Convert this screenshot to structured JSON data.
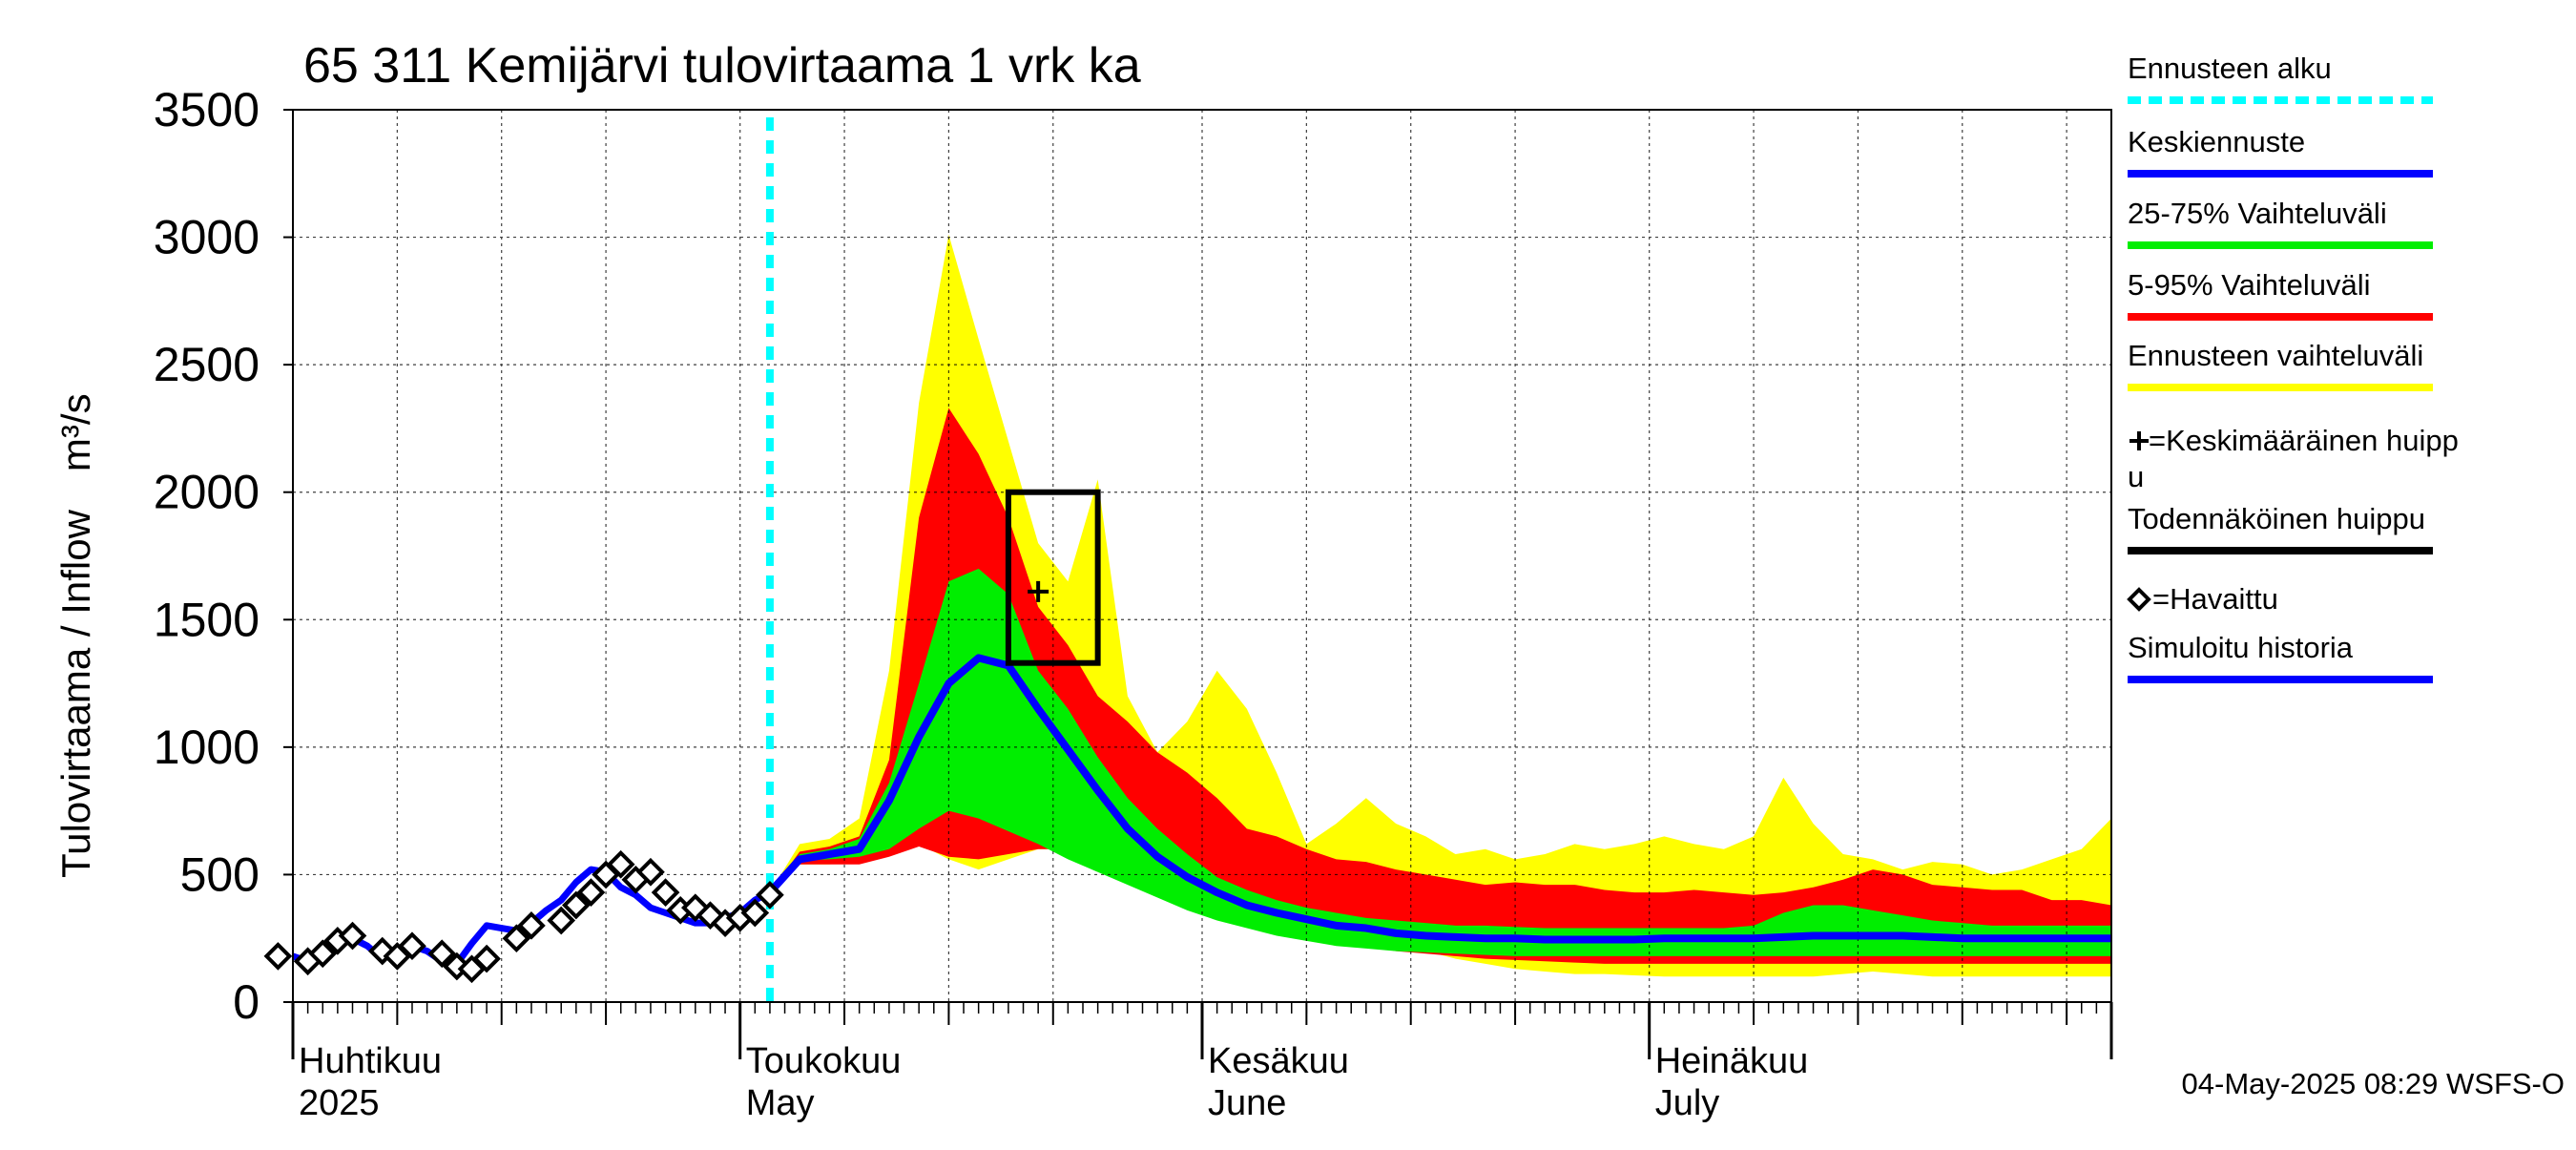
{
  "chart_data": {
    "type": "area",
    "title": "65 311 Kemijärvi tulovirtaama 1 vrk ka",
    "ylabel_fi": "Tulovirtaama / Inflow",
    "ylabel_unit": "m³/s",
    "ylim": [
      0,
      3500
    ],
    "yticks": [
      "0",
      "500",
      "1000",
      "1500",
      "2000",
      "2500",
      "3000",
      "3500"
    ],
    "xlim": [
      "2025-04-01",
      "2025-08-01"
    ],
    "grid": true,
    "x_month_labels": [
      {
        "date": "2025-04-01",
        "line1": "Huhtikuu",
        "line2": "2025"
      },
      {
        "date": "2025-05-01",
        "line1": "Toukokuu",
        "line2": "May"
      },
      {
        "date": "2025-06-01",
        "line1": "Kesäkuu",
        "line2": "June"
      },
      {
        "date": "2025-07-01",
        "line1": "Heinäkuu",
        "line2": "July"
      }
    ],
    "forecast_start": "2025-05-03",
    "band_dates": [
      "2025-05-03",
      "2025-05-05",
      "2025-05-07",
      "2025-05-09",
      "2025-05-11",
      "2025-05-13",
      "2025-05-15",
      "2025-05-17",
      "2025-05-19",
      "2025-05-21",
      "2025-05-23",
      "2025-05-25",
      "2025-05-27",
      "2025-05-29",
      "2025-05-31",
      "2025-06-02",
      "2025-06-04",
      "2025-06-06",
      "2025-06-08",
      "2025-06-10",
      "2025-06-12",
      "2025-06-14",
      "2025-06-16",
      "2025-06-18",
      "2025-06-20",
      "2025-06-22",
      "2025-06-24",
      "2025-06-26",
      "2025-06-28",
      "2025-06-30",
      "2025-07-02",
      "2025-07-04",
      "2025-07-06",
      "2025-07-08",
      "2025-07-10",
      "2025-07-12",
      "2025-07-14",
      "2025-07-16",
      "2025-07-18",
      "2025-07-20",
      "2025-07-22",
      "2025-07-24",
      "2025-07-26",
      "2025-07-28",
      "2025-07-30",
      "2025-08-01"
    ],
    "series": [
      {
        "name": "Ennusteen vaihteluväli",
        "color": "#ffff00",
        "low": [
          430,
          540,
          540,
          560,
          580,
          620,
          560,
          520,
          560,
          600,
          600,
          580,
          540,
          500,
          460,
          400,
          350,
          310,
          280,
          250,
          230,
          210,
          200,
          170,
          150,
          130,
          120,
          110,
          110,
          105,
          100,
          100,
          100,
          100,
          100,
          100,
          110,
          120,
          110,
          100,
          100,
          100,
          100,
          100,
          100,
          100
        ],
        "high": [
          430,
          620,
          640,
          720,
          1300,
          2350,
          3010,
          2600,
          2200,
          1800,
          1650,
          2050,
          1200,
          980,
          1100,
          1300,
          1150,
          900,
          620,
          700,
          800,
          700,
          650,
          580,
          600,
          560,
          580,
          620,
          600,
          620,
          650,
          620,
          600,
          650,
          880,
          700,
          580,
          560,
          520,
          550,
          540,
          500,
          520,
          560,
          600,
          720
        ]
      },
      {
        "name": "5-95% Vaihteluväli",
        "color": "#ff0000",
        "low": [
          430,
          540,
          540,
          540,
          570,
          610,
          570,
          560,
          580,
          600,
          600,
          580,
          530,
          460,
          400,
          360,
          320,
          290,
          260,
          240,
          220,
          200,
          190,
          180,
          170,
          165,
          160,
          155,
          150,
          150,
          150,
          150,
          150,
          150,
          150,
          150,
          150,
          150,
          150,
          150,
          150,
          150,
          150,
          150,
          150,
          150
        ],
        "high": [
          430,
          590,
          610,
          650,
          950,
          1900,
          2330,
          2150,
          1900,
          1550,
          1400,
          1200,
          1100,
          980,
          900,
          800,
          680,
          650,
          600,
          560,
          550,
          520,
          500,
          480,
          460,
          470,
          460,
          460,
          440,
          430,
          430,
          440,
          430,
          420,
          430,
          450,
          480,
          520,
          500,
          460,
          450,
          440,
          440,
          400,
          400,
          380
        ]
      },
      {
        "name": "25-75% Vaihteluväli",
        "color": "#00ee00",
        "low": [
          430,
          555,
          560,
          570,
          600,
          680,
          750,
          720,
          670,
          620,
          560,
          510,
          460,
          410,
          360,
          320,
          290,
          260,
          240,
          220,
          210,
          200,
          195,
          190,
          185,
          180,
          180,
          180,
          180,
          180,
          180,
          180,
          180,
          180,
          180,
          180,
          180,
          180,
          180,
          180,
          180,
          180,
          180,
          180,
          180,
          180
        ],
        "high": [
          430,
          580,
          600,
          640,
          860,
          1250,
          1650,
          1700,
          1600,
          1300,
          1150,
          960,
          800,
          680,
          580,
          490,
          440,
          400,
          370,
          350,
          330,
          320,
          310,
          300,
          300,
          295,
          290,
          290,
          290,
          290,
          290,
          290,
          290,
          300,
          350,
          380,
          380,
          360,
          340,
          320,
          310,
          300,
          300,
          300,
          300,
          300
        ]
      },
      {
        "name": "Keskiennuste",
        "color": "#0000ff",
        "values": [
          430,
          560,
          580,
          600,
          790,
          1040,
          1250,
          1350,
          1320,
          1150,
          990,
          830,
          680,
          570,
          490,
          430,
          380,
          350,
          325,
          300,
          290,
          270,
          260,
          255,
          250,
          250,
          245,
          245,
          245,
          245,
          250,
          250,
          250,
          250,
          255,
          260,
          260,
          260,
          260,
          255,
          250,
          250,
          250,
          250,
          250,
          250
        ]
      },
      {
        "name": "Simuloitu historia",
        "color": "#0000ff",
        "dates": [
          "2025-04-01",
          "2025-04-02",
          "2025-04-03",
          "2025-04-04",
          "2025-04-05",
          "2025-04-06",
          "2025-04-07",
          "2025-04-08",
          "2025-04-09",
          "2025-04-10",
          "2025-04-11",
          "2025-04-12",
          "2025-04-13",
          "2025-04-14",
          "2025-04-15",
          "2025-04-16",
          "2025-04-17",
          "2025-04-18",
          "2025-04-19",
          "2025-04-20",
          "2025-04-21",
          "2025-04-22",
          "2025-04-23",
          "2025-04-24",
          "2025-04-25",
          "2025-04-26",
          "2025-04-27",
          "2025-04-28",
          "2025-04-29",
          "2025-04-30",
          "2025-05-01",
          "2025-05-02",
          "2025-05-03"
        ],
        "values": [
          180,
          160,
          170,
          230,
          250,
          220,
          170,
          200,
          220,
          200,
          160,
          150,
          230,
          300,
          290,
          280,
          310,
          360,
          400,
          470,
          520,
          510,
          450,
          420,
          370,
          350,
          330,
          310,
          310,
          330,
          350,
          400,
          430
        ]
      },
      {
        "name": "Havaittu",
        "color": "#000000",
        "dates": [
          "2025-03-31",
          "2025-04-02",
          "2025-04-03",
          "2025-04-04",
          "2025-04-05",
          "2025-04-07",
          "2025-04-08",
          "2025-04-09",
          "2025-04-11",
          "2025-04-12",
          "2025-04-13",
          "2025-04-14",
          "2025-04-16",
          "2025-04-17",
          "2025-04-19",
          "2025-04-20",
          "2025-04-21",
          "2025-04-22",
          "2025-04-23",
          "2025-04-24",
          "2025-04-25",
          "2025-04-26",
          "2025-04-27",
          "2025-04-28",
          "2025-04-29",
          "2025-04-30",
          "2025-05-01",
          "2025-05-02",
          "2025-05-03"
        ],
        "values": [
          180,
          160,
          190,
          240,
          260,
          200,
          180,
          220,
          190,
          140,
          130,
          170,
          250,
          300,
          320,
          380,
          430,
          500,
          540,
          480,
          510,
          430,
          360,
          370,
          340,
          310,
          330,
          350,
          420
        ]
      }
    ],
    "probable_peak_box": {
      "x0": "2025-05-19",
      "x1": "2025-05-25",
      "y0": 1330,
      "y1": 2000
    },
    "mean_peak": {
      "date": "2025-05-21",
      "value": 1610
    },
    "legend": [
      {
        "label": "Ennusteen alku",
        "color": "#00ffff",
        "style": "dashed"
      },
      {
        "label": "Keskiennuste",
        "color": "#0000ff",
        "style": "line"
      },
      {
        "label": "25-75% Vaihteluväli",
        "color": "#00ee00",
        "style": "line"
      },
      {
        "label": "5-95% Vaihteluväli",
        "color": "#ff0000",
        "style": "line"
      },
      {
        "label": "Ennusteen vaihteluväli",
        "color": "#ffff00",
        "style": "line"
      },
      {
        "label": "=Keskimääräinen huipp",
        "label2": "u",
        "color": "#000000",
        "style": "plus"
      },
      {
        "label": "Todennäköinen huippu",
        "color": "#000000",
        "style": "line"
      },
      {
        "label": "=Havaittu",
        "color": "#000000",
        "style": "diamond"
      },
      {
        "label": "Simuloitu historia",
        "color": "#0000ff",
        "style": "line"
      }
    ],
    "footer": "04-May-2025 08:29 WSFS-O"
  }
}
